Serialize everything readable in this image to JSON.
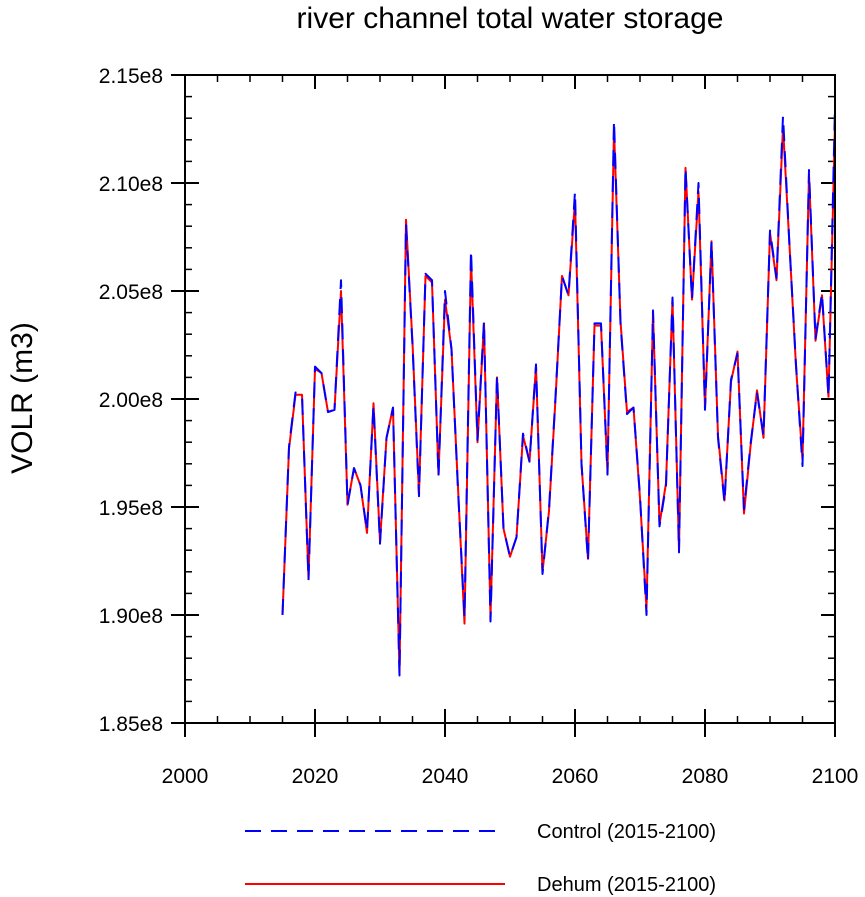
{
  "chart_data": {
    "type": "line",
    "title": "river channel total water storage",
    "xlabel": "",
    "ylabel": "VOLR  (m3)",
    "xlim": [
      2000,
      2100
    ],
    "ylim": [
      185000000,
      215000000
    ],
    "x_ticks": [
      2000,
      2020,
      2040,
      2060,
      2080,
      2100
    ],
    "x_tick_labels": [
      "2000",
      "2020",
      "2040",
      "2060",
      "2080",
      "2100"
    ],
    "y_ticks": [
      185000000,
      190000000,
      195000000,
      200000000,
      205000000,
      210000000,
      215000000
    ],
    "y_tick_labels": [
      "1.85e8",
      "1.90e8",
      "1.95e8",
      "2.00e8",
      "2.05e8",
      "2.10e8",
      "2.15e8"
    ],
    "legend_position": "bottom",
    "x": [
      2015,
      2016,
      2017,
      2018,
      2019,
      2020,
      2021,
      2022,
      2023,
      2024,
      2025,
      2026,
      2027,
      2028,
      2029,
      2030,
      2031,
      2032,
      2033,
      2034,
      2035,
      2036,
      2037,
      2038,
      2039,
      2040,
      2041,
      2042,
      2043,
      2044,
      2045,
      2046,
      2047,
      2048,
      2049,
      2050,
      2051,
      2052,
      2053,
      2054,
      2055,
      2056,
      2057,
      2058,
      2059,
      2060,
      2061,
      2062,
      2063,
      2064,
      2065,
      2066,
      2067,
      2068,
      2069,
      2070,
      2071,
      2072,
      2073,
      2074,
      2075,
      2076,
      2077,
      2078,
      2079,
      2080,
      2081,
      2082,
      2083,
      2084,
      2085,
      2086,
      2087,
      2088,
      2089,
      2090,
      2091,
      2092,
      2093,
      2094,
      2095,
      2096,
      2097,
      2098,
      2099,
      2100
    ],
    "series": [
      {
        "name": "Control (2015-2100)",
        "color": "#0000ff",
        "dash": "dashed",
        "values": [
          190000000,
          197800000,
          200300000,
          200200000,
          191600000,
          201500000,
          201200000,
          199400000,
          199500000,
          205500000,
          195100000,
          196800000,
          196000000,
          193900000,
          199700000,
          193300000,
          198200000,
          199600000,
          187200000,
          208100000,
          202500000,
          195500000,
          205800000,
          205500000,
          196400000,
          205000000,
          202300000,
          195800000,
          189900000,
          206900000,
          198100000,
          203600000,
          189700000,
          201100000,
          194000000,
          192700000,
          193600000,
          198400000,
          197100000,
          201600000,
          191900000,
          194900000,
          200100000,
          205700000,
          204800000,
          209600000,
          197000000,
          192500000,
          203500000,
          203500000,
          196500000,
          212900000,
          203500000,
          199300000,
          199600000,
          195500000,
          190000000,
          204100000,
          194100000,
          196000000,
          204700000,
          192900000,
          210700000,
          204600000,
          210000000,
          199500000,
          207300000,
          198200000,
          195200000,
          200900000,
          202100000,
          194900000,
          197900000,
          200300000,
          198300000,
          207800000,
          205600000,
          213100000,
          207100000,
          201600000,
          196900000,
          210600000,
          202800000,
          204900000,
          200100000,
          213600000
        ]
      },
      {
        "name": "Dehum (2015-2100)",
        "color": "#ff0000",
        "dash": "solid",
        "values": [
          190000000,
          197700000,
          200200000,
          200200000,
          191700000,
          201400000,
          201200000,
          199400000,
          199500000,
          205000000,
          195100000,
          196800000,
          196000000,
          193800000,
          199800000,
          193400000,
          198200000,
          199600000,
          187300000,
          208300000,
          202600000,
          195600000,
          205700000,
          205400000,
          196500000,
          204600000,
          202300000,
          195900000,
          189600000,
          206500000,
          198000000,
          203500000,
          189900000,
          201000000,
          194000000,
          192700000,
          193600000,
          198300000,
          197100000,
          201500000,
          192000000,
          194800000,
          200000000,
          205700000,
          204800000,
          209200000,
          197000000,
          192600000,
          203400000,
          203400000,
          196600000,
          212500000,
          203600000,
          199400000,
          199600000,
          195400000,
          190300000,
          204000000,
          194200000,
          196100000,
          204600000,
          193000000,
          210700000,
          204600000,
          209600000,
          199600000,
          207300000,
          198300000,
          195300000,
          200800000,
          202200000,
          194700000,
          197800000,
          200400000,
          198200000,
          207700000,
          205500000,
          212600000,
          207100000,
          201500000,
          197200000,
          210400000,
          202700000,
          204800000,
          200100000,
          212800000
        ]
      }
    ]
  }
}
